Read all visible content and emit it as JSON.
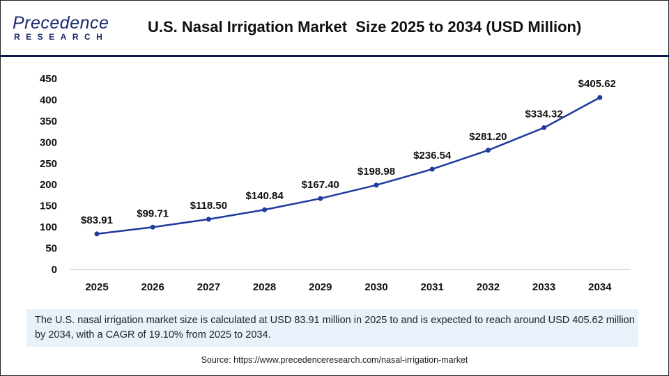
{
  "header": {
    "logo_line1": "Precedence",
    "logo_line2": "RESEARCH",
    "title": "U.S. Nasal Irrigation Market  Size 2025 to 2034 (USD Million)"
  },
  "chart_data": {
    "type": "line",
    "title": "U.S. Nasal Irrigation Market  Size 2025 to 2034 (USD Million)",
    "categories": [
      "2025",
      "2026",
      "2027",
      "2028",
      "2029",
      "2030",
      "2031",
      "2032",
      "2033",
      "2034"
    ],
    "values": [
      83.91,
      99.71,
      118.5,
      140.84,
      167.4,
      198.98,
      236.54,
      281.2,
      334.32,
      405.62
    ],
    "data_labels": [
      "$83.91",
      "$99.71",
      "$118.50",
      "$140.84",
      "$167.40",
      "$198.98",
      "$236.54",
      "$281.20",
      "$334.32",
      "$405.62"
    ],
    "yticks": [
      0,
      50,
      100,
      150,
      200,
      250,
      300,
      350,
      400,
      450
    ],
    "ylim": [
      0,
      450
    ],
    "grid": false,
    "line_color": "#1f3a9e"
  },
  "note": "The U.S. nasal irrigation market size is calculated at USD 83.91 million in 2025 to and is expected to reach around USD 405.62 million by 2034, with a CAGR of 19.10% from 2025 to 2034.",
  "source": "Source: https://www.precedenceresearch.com/nasal-irrigation-market"
}
